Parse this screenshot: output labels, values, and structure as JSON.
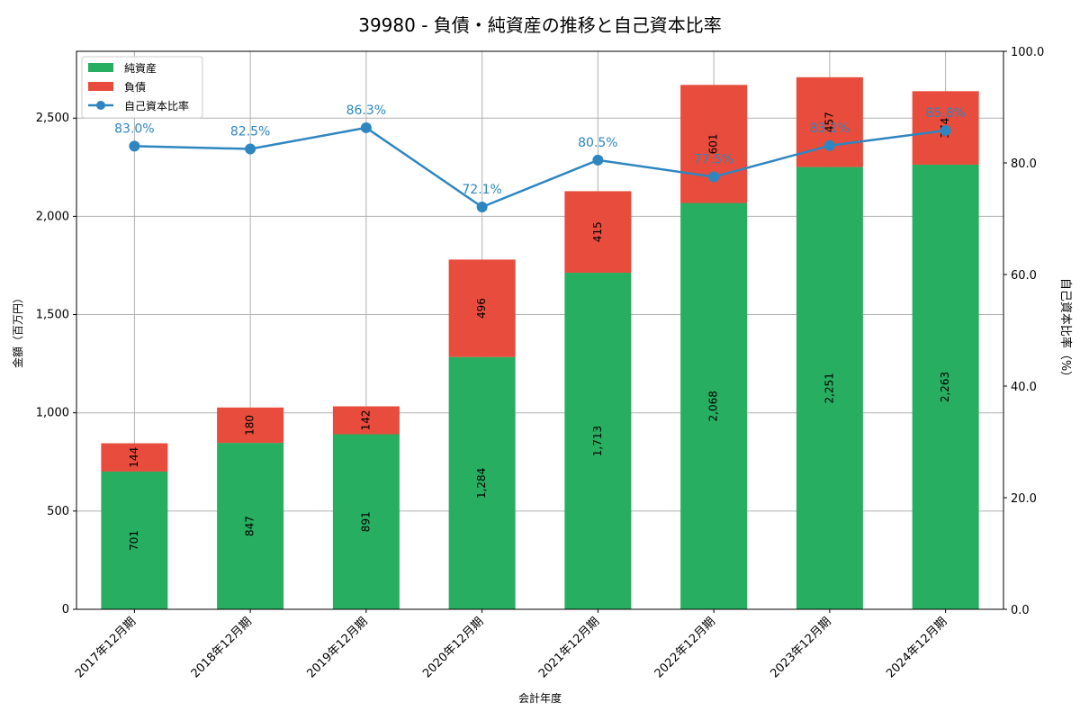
{
  "chart_data": {
    "type": "bar",
    "title": "39980 - 負債・純資産の推移と自己資本比率",
    "xlabel": "会計年度",
    "ylabel": "金額（百万円）",
    "y2label": "自己資本比率（%）",
    "ylim": [
      0,
      2840
    ],
    "y2lim": [
      0,
      100
    ],
    "yticks": [
      "0",
      "500",
      "1,000",
      "1,500",
      "2,000",
      "2,500"
    ],
    "y2ticks": [
      "0.0",
      "20.0",
      "40.0",
      "60.0",
      "80.0",
      "100.0"
    ],
    "categories": [
      "2017年12月期",
      "2018年12月期",
      "2019年12月期",
      "2020年12月期",
      "2021年12月期",
      "2022年12月期",
      "2023年12月期",
      "2024年12月期"
    ],
    "series": [
      {
        "name": "純資産",
        "type": "bar",
        "color": "#27ae60",
        "values": [
          701,
          847,
          891,
          1284,
          1713,
          2068,
          2251,
          2263
        ],
        "labels": [
          "701",
          "847",
          "891",
          "1,284",
          "1,713",
          "2,068",
          "2,251",
          "2,263"
        ]
      },
      {
        "name": "負債",
        "type": "bar",
        "stacked": true,
        "color": "#e74c3c",
        "values": [
          144,
          180,
          142,
          496,
          415,
          601,
          457,
          374
        ],
        "labels": [
          "144",
          "180",
          "142",
          "496",
          "415",
          "601",
          "457",
          "374"
        ]
      },
      {
        "name": "自己資本比率",
        "type": "line",
        "axis": "right",
        "color": "#2e86c1",
        "values": [
          83.0,
          82.5,
          86.3,
          72.1,
          80.5,
          77.5,
          83.1,
          85.8
        ],
        "labels": [
          "83.0%",
          "82.5%",
          "86.3%",
          "72.1%",
          "80.5%",
          "77.5%",
          "83.1%",
          "85.8%"
        ]
      }
    ],
    "legend": {
      "position": "upper left",
      "entries": [
        "純資産",
        "負債",
        "自己資本比率"
      ]
    },
    "grid": true
  }
}
